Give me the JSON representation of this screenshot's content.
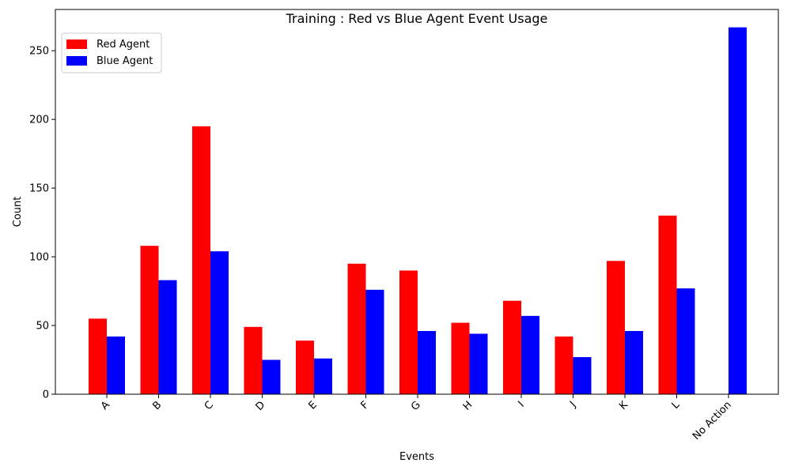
{
  "chart_data": {
    "type": "bar",
    "title": "Training : Red vs Blue Agent Event Usage",
    "xlabel": "Events",
    "ylabel": "Count",
    "categories": [
      "A",
      "B",
      "C",
      "D",
      "E",
      "F",
      "G",
      "H",
      "I",
      "J",
      "K",
      "L",
      "No Action"
    ],
    "series": [
      {
        "name": "Red Agent",
        "color": "#ff0000",
        "values": [
          55,
          108,
          195,
          49,
          39,
          95,
          90,
          52,
          68,
          42,
          97,
          130,
          0
        ]
      },
      {
        "name": "Blue Agent",
        "color": "#0000ff",
        "values": [
          42,
          83,
          104,
          25,
          26,
          76,
          46,
          44,
          57,
          27,
          46,
          77,
          267
        ]
      }
    ],
    "ylim": [
      0,
      280
    ],
    "yticks": [
      0,
      50,
      100,
      150,
      200,
      250
    ],
    "grid": false,
    "legend_position": "top-left",
    "xtick_rotation": 45
  }
}
